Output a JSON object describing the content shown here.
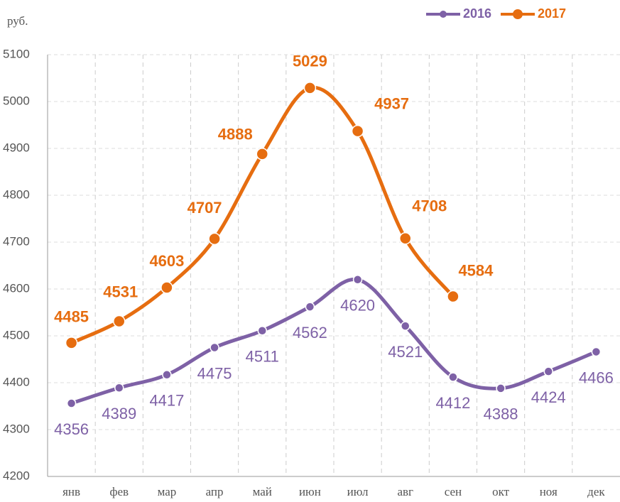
{
  "chart_data": {
    "type": "line",
    "unit": "руб.",
    "categories": [
      "янв",
      "фев",
      "мар",
      "апр",
      "май",
      "июн",
      "июл",
      "авг",
      "сен",
      "окт",
      "ноя",
      "дек"
    ],
    "series": [
      {
        "name": "2016",
        "color": "#7e61a6",
        "values": [
          4356,
          4389,
          4417,
          4475,
          4511,
          4562,
          4620,
          4521,
          4412,
          4388,
          4424,
          4466
        ]
      },
      {
        "name": "2017",
        "color": "#e66d10",
        "values": [
          4485,
          4531,
          4603,
          4707,
          4888,
          5029,
          4937,
          4708,
          4584,
          null,
          null,
          null
        ]
      }
    ],
    "ylim": [
      4200,
      5100
    ],
    "yticks": [
      4200,
      4300,
      4400,
      4500,
      4600,
      4700,
      4800,
      4900,
      5000,
      5100
    ],
    "grid": true,
    "legend": "top-right"
  }
}
